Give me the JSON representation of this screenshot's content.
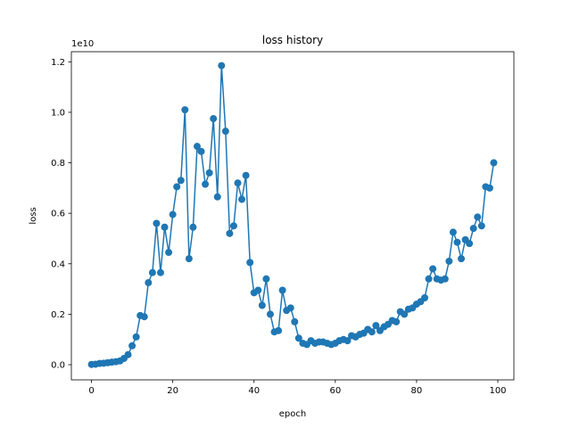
{
  "chart_data": {
    "type": "line",
    "title": "loss history",
    "xlabel": "epoch",
    "ylabel": "loss",
    "y_scale_label": "1e10",
    "xlim": [
      -4.95,
      103.95
    ],
    "ylim": [
      -0.06,
      1.24
    ],
    "x_ticks": [
      0,
      20,
      40,
      60,
      80,
      100
    ],
    "x_tick_labels": [
      "0",
      "20",
      "40",
      "60",
      "80",
      "100"
    ],
    "y_ticks": [
      0,
      0.2,
      0.4,
      0.6,
      0.8,
      1.0,
      1.2
    ],
    "y_tick_labels": [
      "0.0",
      "0.2",
      "0.4",
      "0.6",
      "0.8",
      "1.0",
      "1.2"
    ],
    "grid": false,
    "series": [
      {
        "color": "#1f77b4",
        "marker": "circle",
        "x": [
          0,
          1,
          2,
          3,
          4,
          5,
          6,
          7,
          8,
          9,
          10,
          11,
          12,
          13,
          14,
          15,
          16,
          17,
          18,
          19,
          20,
          21,
          22,
          23,
          24,
          25,
          26,
          27,
          28,
          29,
          30,
          31,
          32,
          33,
          34,
          35,
          36,
          37,
          38,
          39,
          40,
          41,
          42,
          43,
          44,
          45,
          46,
          47,
          48,
          49,
          50,
          51,
          52,
          53,
          54,
          55,
          56,
          57,
          58,
          59,
          60,
          61,
          62,
          63,
          64,
          65,
          66,
          67,
          68,
          69,
          70,
          71,
          72,
          73,
          74,
          75,
          76,
          77,
          78,
          79,
          80,
          81,
          82,
          83,
          84,
          85,
          86,
          87,
          88,
          89,
          90,
          91,
          92,
          93,
          94,
          95,
          96,
          97,
          98,
          99
        ],
        "y": [
          0.001,
          0.002,
          0.005,
          0.006,
          0.008,
          0.01,
          0.012,
          0.015,
          0.025,
          0.04,
          0.075,
          0.11,
          0.195,
          0.19,
          0.325,
          0.365,
          0.56,
          0.365,
          0.545,
          0.445,
          0.595,
          0.705,
          0.73,
          1.01,
          0.42,
          0.545,
          0.865,
          0.845,
          0.715,
          0.76,
          0.975,
          0.665,
          1.185,
          0.925,
          0.52,
          0.55,
          0.72,
          0.655,
          0.75,
          0.405,
          0.285,
          0.295,
          0.235,
          0.34,
          0.2,
          0.13,
          0.135,
          0.295,
          0.215,
          0.225,
          0.17,
          0.105,
          0.085,
          0.08,
          0.095,
          0.085,
          0.09,
          0.09,
          0.085,
          0.08,
          0.085,
          0.095,
          0.1,
          0.095,
          0.115,
          0.11,
          0.12,
          0.125,
          0.14,
          0.13,
          0.155,
          0.135,
          0.15,
          0.16,
          0.175,
          0.17,
          0.21,
          0.2,
          0.22,
          0.225,
          0.24,
          0.25,
          0.265,
          0.34,
          0.38,
          0.34,
          0.335,
          0.34,
          0.41,
          0.525,
          0.485,
          0.42,
          0.495,
          0.48,
          0.54,
          0.585,
          0.55,
          0.705,
          0.7,
          0.8
        ]
      }
    ]
  }
}
